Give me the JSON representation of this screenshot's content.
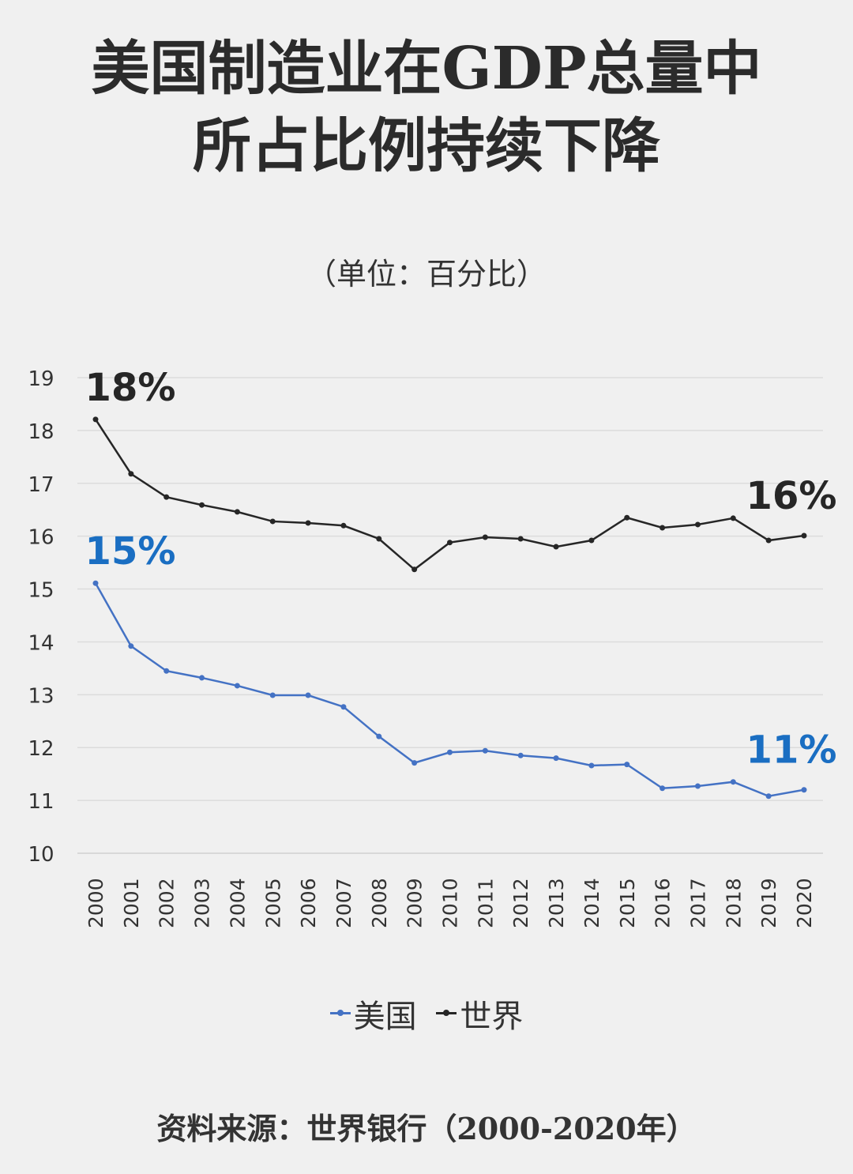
{
  "title_lines": [
    "美国制造业在GDP总量中",
    "所占比例持续下降"
  ],
  "unit_label": "（单位：百分比）",
  "source": "资料来源：世界银行（2000-2020年）",
  "colors": {
    "us": "#4472c4",
    "us_label": "#1a6ec2",
    "world": "#262626",
    "grid": "#dcdcdc",
    "background": "#f0f0f0"
  },
  "chart_data": {
    "type": "line",
    "x": [
      2000,
      2001,
      2002,
      2003,
      2004,
      2005,
      2006,
      2007,
      2008,
      2009,
      2010,
      2011,
      2012,
      2013,
      2014,
      2015,
      2016,
      2017,
      2018,
      2019,
      2020
    ],
    "x_tick_labels": [
      "2000",
      "2001",
      "2002",
      "2003",
      "2004",
      "2005",
      "2006",
      "2007",
      "2008",
      "2009",
      "2010",
      "2011",
      "2012",
      "2013",
      "2014",
      "2015",
      "2016",
      "2017",
      "2018",
      "2019",
      "2020"
    ],
    "ylim": [
      10,
      19
    ],
    "y_ticks": [
      10,
      11,
      12,
      13,
      14,
      15,
      16,
      17,
      18,
      19
    ],
    "grid": "horizontal",
    "legend_position": "bottom",
    "series": [
      {
        "name": "美国",
        "values": [
          15.11,
          13.92,
          13.45,
          13.32,
          13.17,
          12.99,
          12.99,
          12.77,
          12.21,
          11.71,
          11.91,
          11.94,
          11.85,
          11.8,
          11.66,
          11.68,
          11.23,
          11.27,
          11.35,
          11.08,
          11.2
        ],
        "start_label": "15%",
        "end_label": "11%"
      },
      {
        "name": "世界",
        "values": [
          18.21,
          17.18,
          16.74,
          16.59,
          16.46,
          16.28,
          16.25,
          16.2,
          15.95,
          15.37,
          15.88,
          15.98,
          15.95,
          15.8,
          15.92,
          16.35,
          16.16,
          16.22,
          16.34,
          15.92,
          16.01
        ],
        "start_label": "18%",
        "end_label": "16%"
      }
    ]
  }
}
